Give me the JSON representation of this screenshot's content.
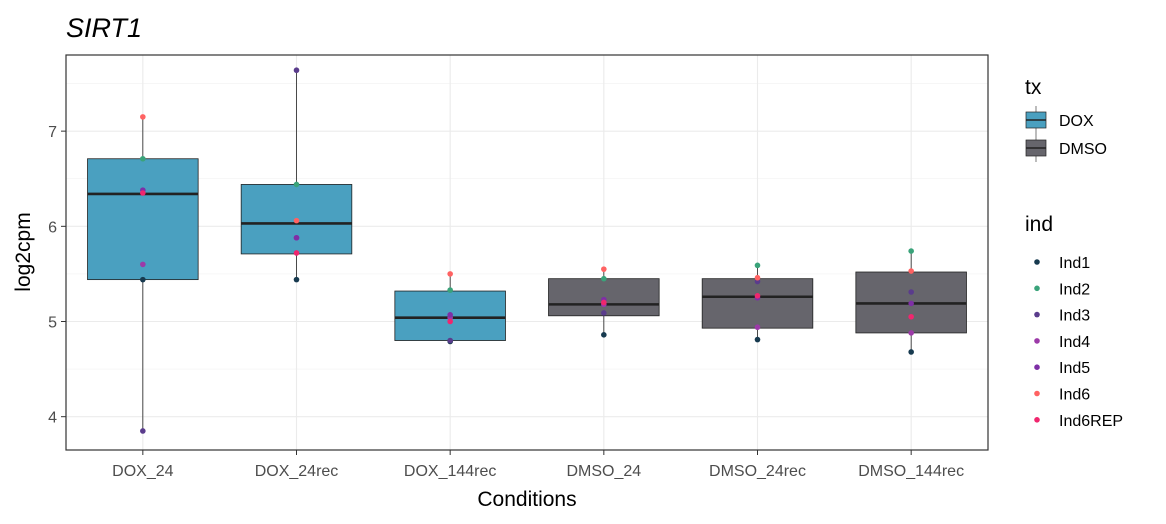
{
  "chart_data": {
    "type": "box",
    "title": "SIRT1",
    "xlabel": "Conditions",
    "ylabel": "log2cpm",
    "ylim": [
      3.65,
      7.8
    ],
    "yticks": [
      4,
      5,
      6,
      7
    ],
    "grid": true,
    "legend_position": "right",
    "categories": [
      "DOX_24",
      "DOX_24rec",
      "DOX_144rec",
      "DMSO_24",
      "DMSO_24rec",
      "DMSO_144rec"
    ],
    "boxes": [
      {
        "category": "DOX_24",
        "tx": "DOX",
        "q1": 5.44,
        "median": 6.34,
        "q3": 6.71,
        "whisker_low": 3.85,
        "whisker_high": 7.15
      },
      {
        "category": "DOX_24rec",
        "tx": "DOX",
        "q1": 5.71,
        "median": 6.03,
        "q3": 6.44,
        "whisker_low": 5.44,
        "whisker_high": 7.64
      },
      {
        "category": "DOX_144rec",
        "tx": "DOX",
        "q1": 4.8,
        "median": 5.04,
        "q3": 5.32,
        "whisker_low": 4.79,
        "whisker_high": 5.5
      },
      {
        "category": "DMSO_24",
        "tx": "DMSO",
        "q1": 5.06,
        "median": 5.18,
        "q3": 5.45,
        "whisker_low": 4.86,
        "whisker_high": 5.55
      },
      {
        "category": "DMSO_24rec",
        "tx": "DMSO",
        "q1": 4.93,
        "median": 5.26,
        "q3": 5.45,
        "whisker_low": 4.81,
        "whisker_high": 5.59
      },
      {
        "category": "DMSO_144rec",
        "tx": "DMSO",
        "q1": 4.88,
        "median": 5.19,
        "q3": 5.52,
        "whisker_low": 4.68,
        "whisker_high": 5.74
      }
    ],
    "points": {
      "Ind1": [
        5.44,
        5.44,
        4.79,
        4.86,
        4.81,
        4.68
      ],
      "Ind2": [
        6.71,
        6.44,
        5.33,
        5.45,
        5.59,
        5.74
      ],
      "Ind3": [
        3.85,
        7.64,
        4.8,
        5.09,
        5.42,
        5.31
      ],
      "Ind4": [
        5.6,
        5.88,
        5.04,
        5.18,
        4.94,
        4.88
      ],
      "Ind5": [
        6.38,
        5.88,
        5.07,
        5.23,
        5.25,
        5.19
      ],
      "Ind6": [
        7.15,
        6.06,
        5.5,
        5.55,
        5.46,
        5.53
      ],
      "Ind6REP": [
        6.35,
        5.72,
        5.0,
        5.2,
        5.27,
        5.05
      ]
    },
    "legend_tx": {
      "title": "tx",
      "entries": [
        {
          "label": "DOX",
          "color": "#4aa0c0"
        },
        {
          "label": "DMSO",
          "color": "#66656c"
        }
      ]
    },
    "legend_ind": {
      "title": "ind",
      "entries": [
        {
          "label": "Ind1",
          "color": "#173a4f"
        },
        {
          "label": "Ind2",
          "color": "#3aa37a"
        },
        {
          "label": "Ind3",
          "color": "#5a3c8c"
        },
        {
          "label": "Ind4",
          "color": "#9c3aa8"
        },
        {
          "label": "Ind5",
          "color": "#7e2fa6"
        },
        {
          "label": "Ind6",
          "color": "#ff6262"
        },
        {
          "label": "Ind6REP",
          "color": "#f0266e"
        }
      ]
    }
  }
}
